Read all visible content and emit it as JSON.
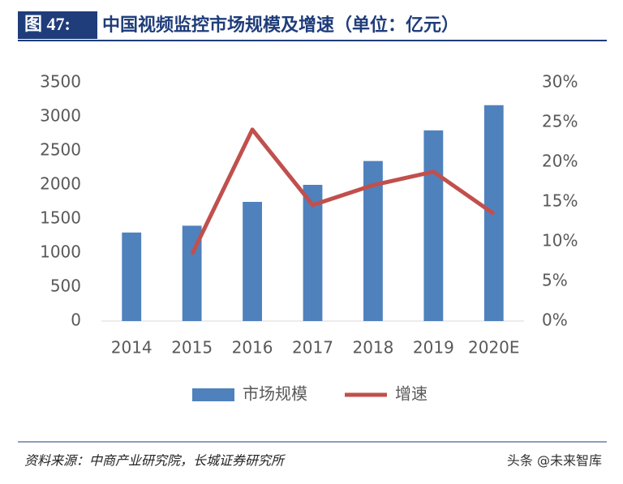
{
  "header": {
    "label": "图 47:",
    "title": "中国视频监控市场规模及增速（单位：亿元）"
  },
  "chart_data": {
    "type": "bar-line",
    "categories": [
      "2014",
      "2015",
      "2016",
      "2017",
      "2018",
      "2019",
      "2020E"
    ],
    "series": [
      {
        "name": "市场规模",
        "color": "#4f81bd",
        "type": "bar",
        "values": [
          1300,
          1400,
          1750,
          2000,
          2350,
          2800,
          3170
        ]
      },
      {
        "name": "增速",
        "color": "#c0504d",
        "type": "line",
        "axis": "y2",
        "values": [
          null,
          8.4,
          24.1,
          14.6,
          17.1,
          18.8,
          13.5
        ]
      }
    ],
    "ylim": [
      0,
      3500
    ],
    "yticks": [
      0,
      500,
      1000,
      1500,
      2000,
      2500,
      3000,
      3500
    ],
    "y2lim": [
      0,
      30
    ],
    "y2ticks": [
      {
        "value": 0,
        "label": "0%"
      },
      {
        "value": 5,
        "label": "5%"
      },
      {
        "value": 10,
        "label": "10%"
      },
      {
        "value": 15,
        "label": "15%"
      },
      {
        "value": 20,
        "label": "20%"
      },
      {
        "value": 25,
        "label": "25%"
      },
      {
        "value": 30,
        "label": "30%"
      }
    ],
    "grid": false
  },
  "footer": {
    "source": "资料来源：中商产业研究院，长城证券研究所",
    "watermark": "头条 @未来智库"
  }
}
